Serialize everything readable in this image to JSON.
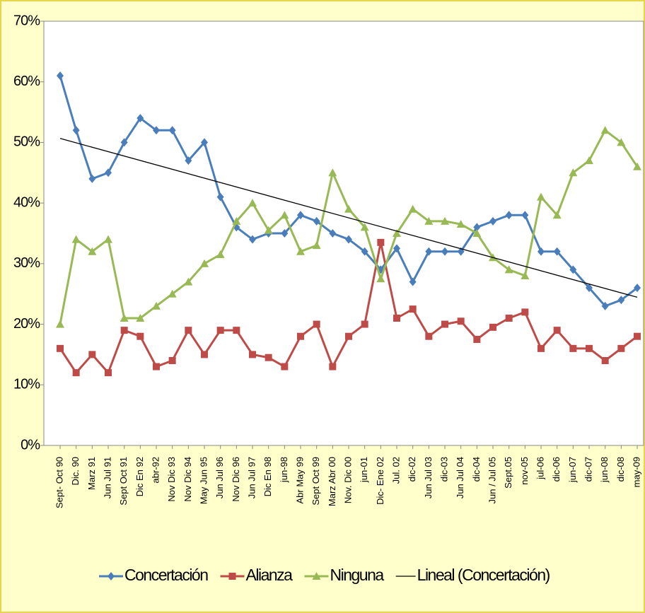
{
  "chart_data": {
    "type": "line",
    "categories": [
      "Sept- Oct 90",
      "Dic. 90",
      "Marz 91",
      "Jun Jul 91",
      "Sept Oct 91",
      "Dic En 92",
      "abr-92",
      "Nov Dic 93",
      "Nov Dic 94",
      "May Jun 95",
      "Jun Jul 96",
      "Nov Dic 96",
      "Jun Jul 97",
      "Dic En 98",
      "jun-98",
      "Abr May 99",
      "Sept Oct 99",
      "Marz Abr 00",
      "Nov. Dic 00",
      "jun-01",
      "Dic- Ene 02",
      "Jul. 02",
      "dic-02",
      "Jun Jul 03",
      "dic-03",
      "Jun Jul 04",
      "dic-04",
      "Jun / Jul 05",
      "Sept.05",
      "nov-05",
      "jul-06",
      "dic-06",
      "jun-07",
      "dic-07",
      "jun-08",
      "dic-08",
      "may-09"
    ],
    "series": [
      {
        "name": "Concertación",
        "color": "#4a7ebb",
        "marker": "diamond",
        "values": [
          61,
          52,
          44,
          45,
          50,
          54,
          52,
          52,
          47,
          50,
          41,
          36,
          34,
          35,
          35,
          38,
          37,
          35,
          34,
          32,
          29,
          32.5,
          27,
          32,
          32,
          32,
          36,
          37,
          38,
          38,
          32,
          32,
          29,
          26,
          23,
          24,
          26
        ]
      },
      {
        "name": "Alianza",
        "color": "#be4b48",
        "marker": "square",
        "values": [
          16,
          12,
          15,
          12,
          19,
          18,
          13,
          14,
          19,
          15,
          19,
          19,
          15,
          14.5,
          13,
          18,
          20,
          13,
          18,
          20,
          33.5,
          21,
          22.5,
          18,
          20,
          20.5,
          17.5,
          19.5,
          21,
          22,
          16,
          19,
          16,
          16,
          14,
          16,
          18
        ]
      },
      {
        "name": "Ninguna",
        "color": "#98b954",
        "marker": "triangle",
        "values": [
          20,
          34,
          32,
          34,
          21,
          21,
          23,
          25,
          27,
          30,
          31.5,
          37,
          40,
          35.5,
          38,
          32,
          33,
          45,
          39,
          36,
          27.5,
          35,
          39,
          37,
          37,
          36.5,
          35,
          31,
          29,
          28,
          41,
          38,
          45,
          47,
          52,
          50,
          46
        ]
      }
    ],
    "trendline": {
      "name": "Lineal (Concertación)",
      "color": "#000000"
    },
    "ylim": [
      0,
      70
    ],
    "yticks": [
      {
        "value": 0,
        "label": "0%"
      },
      {
        "value": 10,
        "label": "10%"
      },
      {
        "value": 20,
        "label": "20%"
      },
      {
        "value": 30,
        "label": "30%"
      },
      {
        "value": 40,
        "label": "40%"
      },
      {
        "value": 50,
        "label": "50%"
      },
      {
        "value": 60,
        "label": "60%"
      },
      {
        "value": 70,
        "label": "70%"
      }
    ],
    "legend": "bottom"
  }
}
